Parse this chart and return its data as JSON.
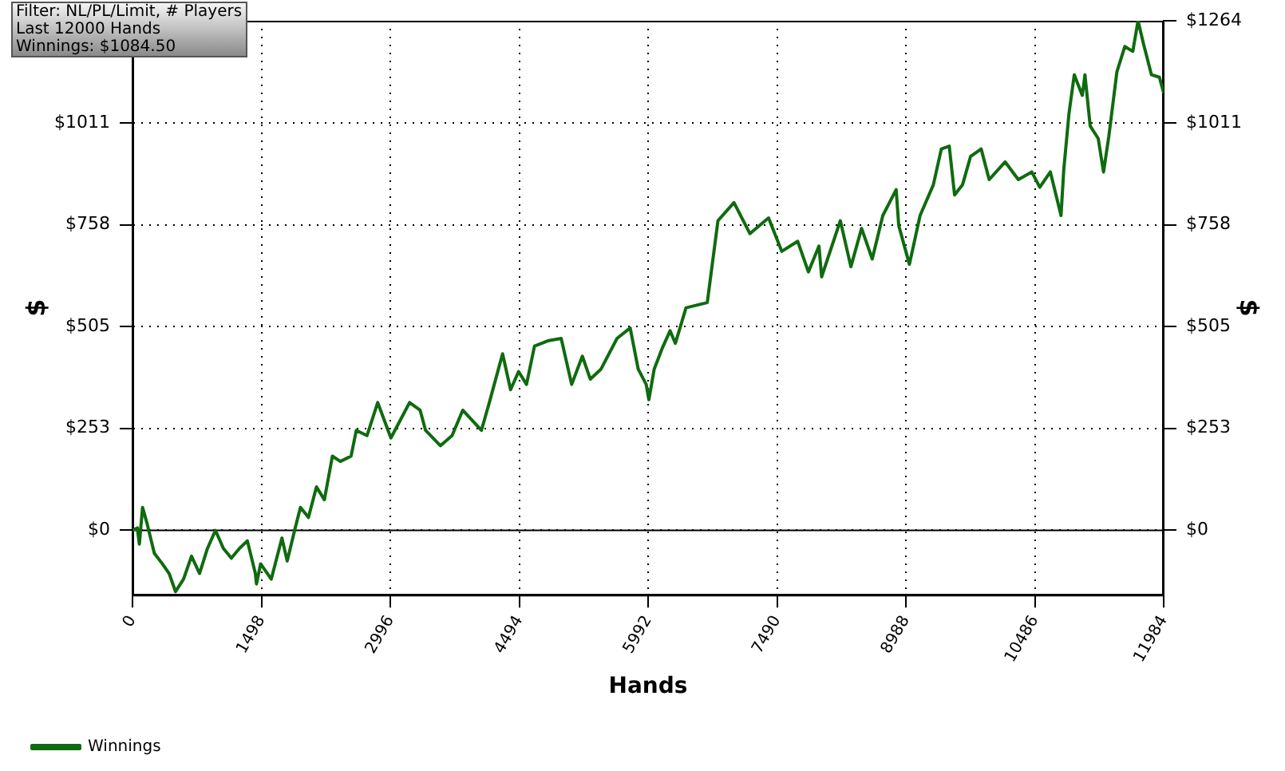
{
  "chart_data": {
    "type": "line",
    "xlabel": "Hands",
    "ylabel": "$",
    "y2label": "$",
    "annotations": [
      "Filter: NL/PL/Limit, # Players",
      "Last  12000 Hands",
      "Winnings: $1084.50"
    ],
    "series": [
      {
        "name": "Winnings",
        "color": "#0f6b0f",
        "values": [
          0,
          6,
          -34,
          57,
          19,
          -57,
          -83,
          -107,
          -152,
          -121,
          -64,
          -107,
          -45,
          0,
          -45,
          -69,
          -45,
          -26,
          -107,
          -133,
          -83,
          -121,
          -19,
          -76,
          6,
          57,
          32,
          108,
          76,
          184,
          171,
          184,
          248,
          235,
          317,
          229,
          317,
          298,
          248,
          210,
          235,
          298,
          248,
          317,
          438,
          349,
          394,
          362,
          457,
          470,
          476,
          362,
          432,
          375,
          400,
          476,
          502,
          400,
          362,
          324,
          400,
          451,
          495,
          464,
          552,
          565,
          768,
          813,
          736,
          775,
          692,
          717,
          641,
          705,
          629,
          768,
          654,
          749,
          673,
          781,
          845,
          756,
          660,
          781,
          857,
          946,
          953,
          832,
          857,
          927,
          946,
          870,
          914,
          870,
          889,
          851,
          889,
          781,
          895,
          1035,
          1130,
          1079,
          1130,
          1003,
          972,
          889,
          978,
          1137,
          1200,
          1188,
          1264,
          1207,
          1130,
          1124,
          1085
        ]
      }
    ],
    "x": [
      0,
      56,
      80,
      117,
      167,
      254,
      347,
      426,
      500,
      593,
      686,
      779,
      871,
      964,
      1057,
      1149,
      1242,
      1335,
      1428,
      1441,
      1489,
      1613,
      1737,
      1798,
      1891,
      1952,
      2045,
      2138,
      2230,
      2323,
      2416,
      2540,
      2601,
      2725,
      2850,
      3003,
      3220,
      3343,
      3406,
      3578,
      3714,
      3838,
      4055,
      4147,
      4301,
      4394,
      4487,
      4579,
      4672,
      4826,
      4982,
      5104,
      5228,
      5321,
      5445,
      5631,
      5784,
      5877,
      5970,
      6001,
      6063,
      6155,
      6248,
      6309,
      6433,
      6680,
      6804,
      6990,
      7175,
      7392,
      7546,
      7731,
      7855,
      7978,
      8009,
      8226,
      8349,
      8473,
      8597,
      8720,
      8875,
      8905,
      9029,
      9153,
      9307,
      9400,
      9492,
      9554,
      9646,
      9739,
      9863,
      9956,
      10141,
      10295,
      10451,
      10544,
      10667,
      10791,
      10823,
      10884,
      10945,
      11038,
      11069,
      11130,
      11223,
      11285,
      11347,
      11440,
      11532,
      11625,
      11686,
      11749,
      11842,
      11934,
      11984
    ],
    "xlim": [
      0,
      11984
    ],
    "xticks": [
      0,
      1498,
      2996,
      4494,
      5992,
      7490,
      8988,
      10486,
      11984
    ],
    "ylim": [
      -160,
      1264
    ],
    "yticks": [
      {
        "value": 0,
        "label": "$0"
      },
      {
        "value": 253,
        "label": "$253"
      },
      {
        "value": 505,
        "label": "$505"
      },
      {
        "value": 758,
        "label": "$758"
      },
      {
        "value": 1011,
        "label": "$1011"
      }
    ],
    "y2lim": [
      -160,
      1264
    ],
    "y2ticks": [
      {
        "value": 0,
        "label": "$0"
      },
      {
        "value": 253,
        "label": "$253"
      },
      {
        "value": 505,
        "label": "$505"
      },
      {
        "value": 758,
        "label": "$758"
      },
      {
        "value": 1011,
        "label": "$1011"
      },
      {
        "value": 1264,
        "label": "$1264"
      }
    ],
    "ref_lines": [
      {
        "axis": "y",
        "value": 0,
        "color": "#000000"
      }
    ],
    "grid": true,
    "legend": "bottom left",
    "line_style": "solid",
    "marker": "none"
  }
}
